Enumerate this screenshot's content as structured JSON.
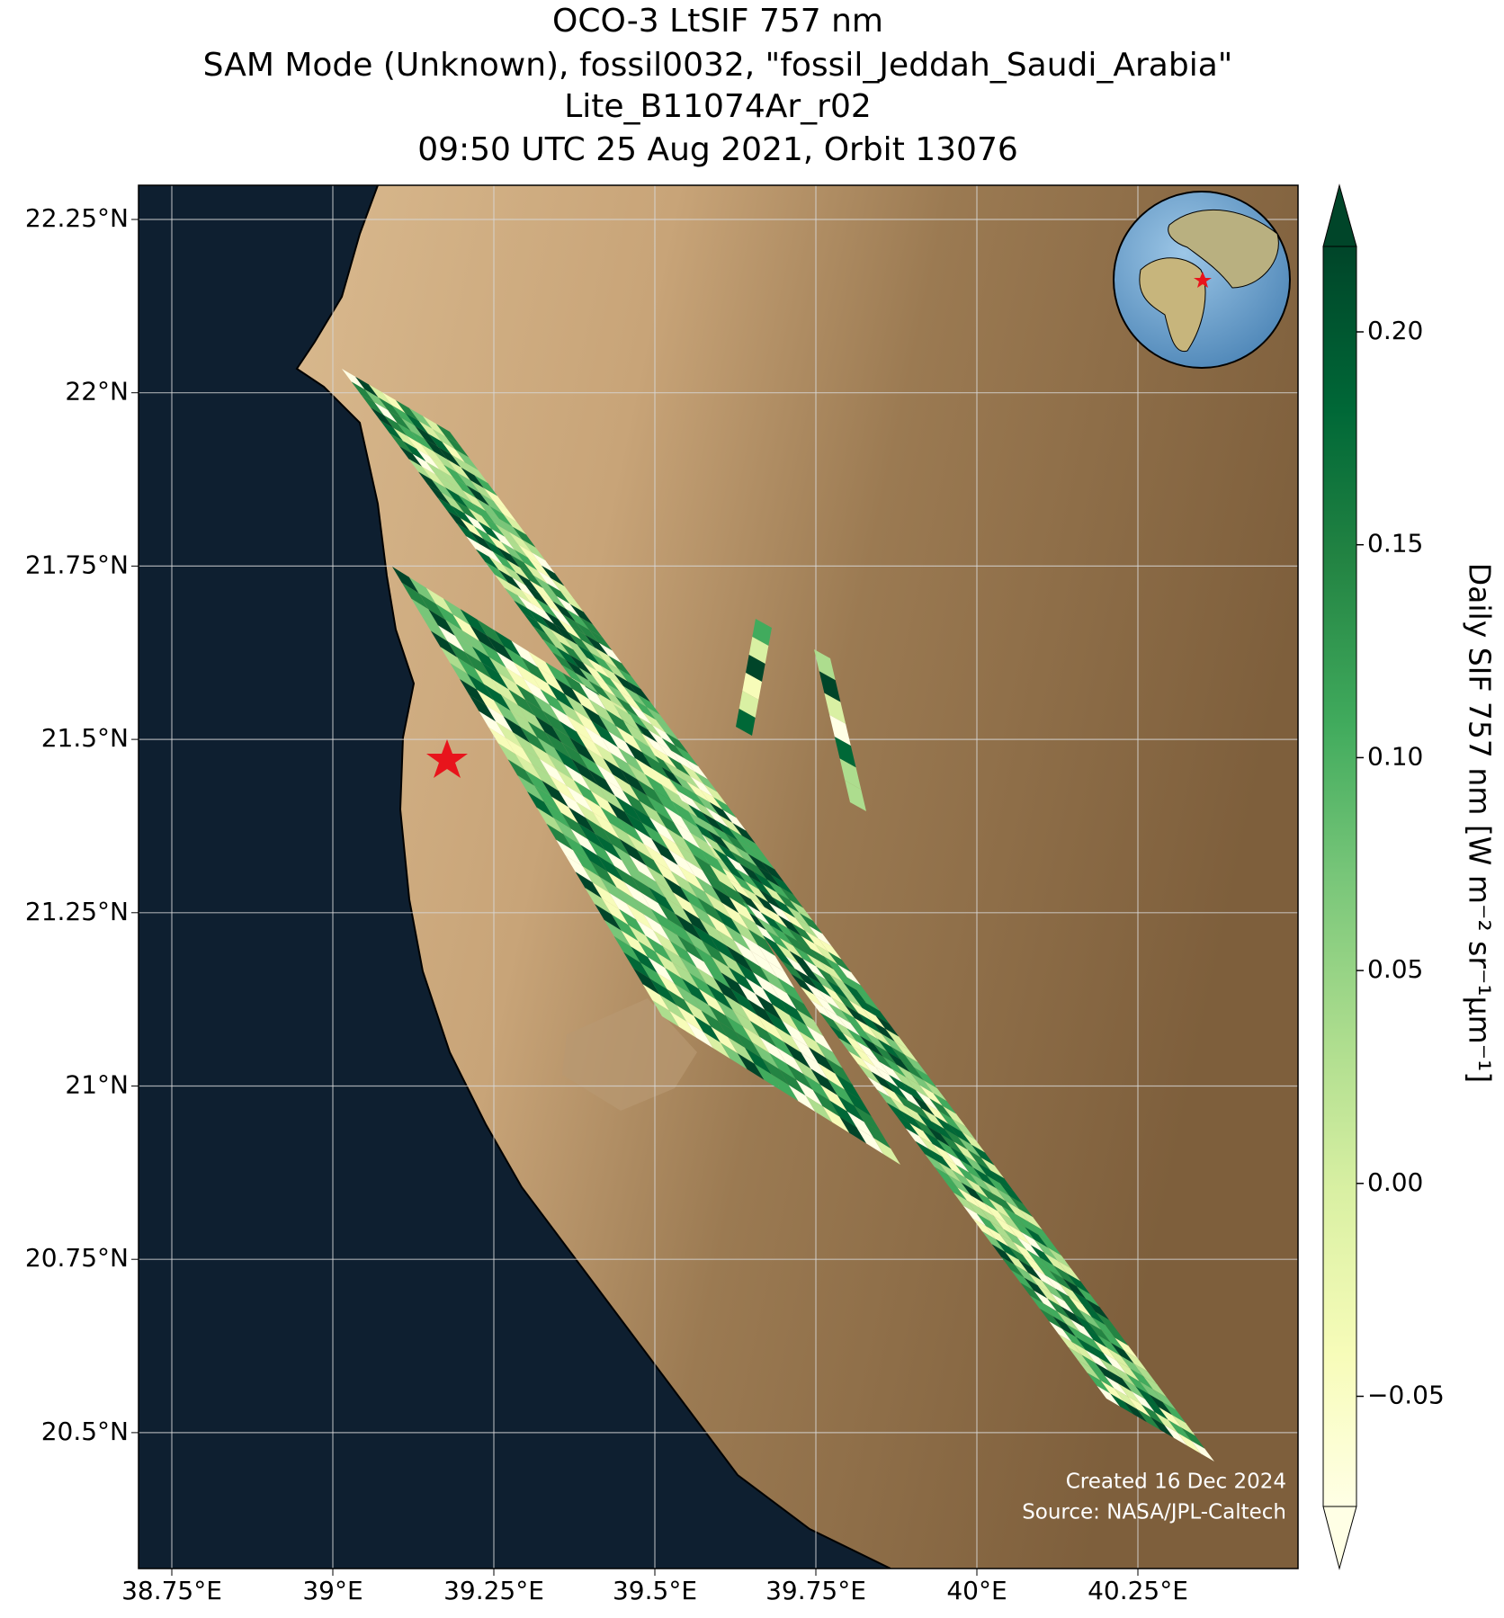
{
  "header": {
    "title_lines": [
      "OCO-3 LtSIF 757 nm",
      "SAM Mode (Unknown), fossil0032, \"fossil_Jeddah_Saudi_Arabia\"",
      "Lite_B11074Ar_r02",
      "09:50 UTC 25 Aug 2021, Orbit 13076"
    ]
  },
  "map": {
    "lat_labels": [
      "22.25°N",
      "22°N",
      "21.75°N",
      "21.5°N",
      "21.25°N",
      "21°N",
      "20.75°N",
      "20.5°N"
    ],
    "lon_labels": [
      "38.75°E",
      "39°E",
      "39.25°E",
      "39.5°E",
      "39.75°E",
      "40°E",
      "40.25°E"
    ],
    "credits": [
      "Created 16 Dec 2024",
      "Source: NASA/JPL-Caltech"
    ]
  },
  "colorbar": {
    "label": "Daily SIF 757 nm [W m⁻² sr⁻¹μm⁻¹]",
    "tick_labels": [
      "0.20",
      "0.15",
      "0.10",
      "0.05",
      "0.00",
      "−0.05"
    ]
  }
}
